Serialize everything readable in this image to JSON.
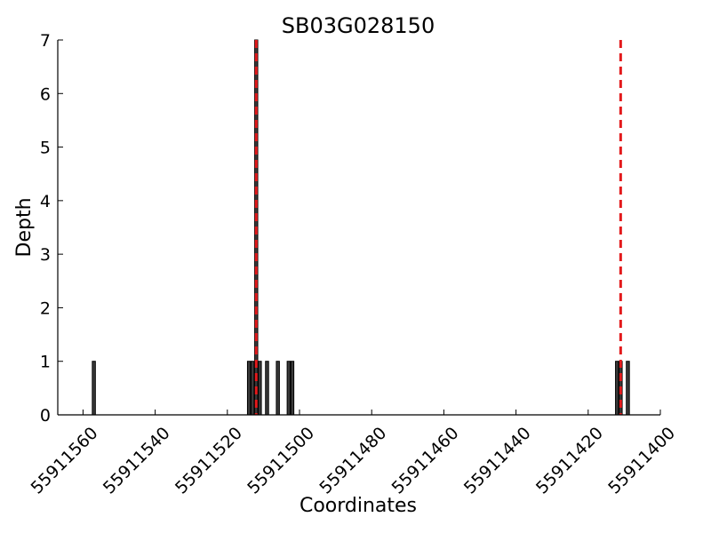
{
  "chart_data": {
    "type": "bar",
    "title": "SB03G028150",
    "xlabel": "Coordinates",
    "ylabel": "Depth",
    "xlim": [
      55911567,
      55911400
    ],
    "ylim": [
      0,
      7
    ],
    "x_reversed": true,
    "x_ticks": [
      55911560,
      55911540,
      55911520,
      55911500,
      55911480,
      55911460,
      55911440,
      55911420,
      55911400
    ],
    "y_ticks": [
      0,
      1,
      2,
      3,
      4,
      5,
      6,
      7
    ],
    "grid": false,
    "bar_color": "#3a3a3a",
    "bars": [
      {
        "x": 55911557,
        "value": 1
      },
      {
        "x": 55911514,
        "value": 1
      },
      {
        "x": 55911513,
        "value": 1
      },
      {
        "x": 55911512,
        "value": 7
      },
      {
        "x": 55911511,
        "value": 1
      },
      {
        "x": 55911509,
        "value": 1
      },
      {
        "x": 55911506,
        "value": 1
      },
      {
        "x": 55911503,
        "value": 1
      },
      {
        "x": 55911502,
        "value": 1
      },
      {
        "x": 55911412,
        "value": 1
      },
      {
        "x": 55911411,
        "value": 1
      },
      {
        "x": 55911409,
        "value": 1
      }
    ],
    "markers": [
      {
        "x": 55911512,
        "color": "#e31a1c",
        "style": "dashed"
      },
      {
        "x": 55911411,
        "color": "#e31a1c",
        "style": "dashed"
      }
    ]
  }
}
